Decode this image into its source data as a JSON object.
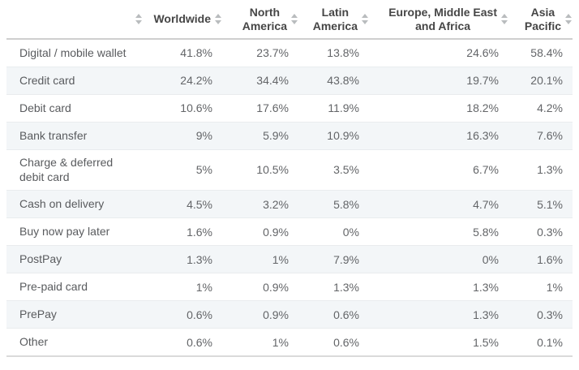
{
  "chart_data": {
    "type": "table",
    "title": "",
    "unit": "%",
    "categories": [
      "Digital / mobile wallet",
      "Credit card",
      "Debit card",
      "Bank transfer",
      "Charge & deferred debit card",
      "Cash on delivery",
      "Buy now pay later",
      "PostPay",
      "Pre-paid card",
      "PrePay",
      "Other"
    ],
    "series": [
      {
        "name": "Worldwide",
        "values": [
          41.8,
          24.2,
          10.6,
          9,
          5,
          4.5,
          1.6,
          1.3,
          1,
          0.6,
          0.6
        ]
      },
      {
        "name": "North America",
        "values": [
          23.7,
          34.4,
          17.6,
          5.9,
          10.5,
          3.2,
          0.9,
          1,
          0.9,
          0.9,
          1
        ]
      },
      {
        "name": "Latin America",
        "values": [
          13.8,
          43.8,
          11.9,
          10.9,
          3.5,
          5.8,
          0,
          7.9,
          1.3,
          0.6,
          0.6
        ]
      },
      {
        "name": "Europe, Middle East and Africa",
        "values": [
          24.6,
          19.7,
          18.2,
          16.3,
          6.7,
          4.7,
          5.8,
          0,
          1.3,
          1.3,
          1.5
        ]
      },
      {
        "name": "Asia Pacific",
        "values": [
          58.4,
          20.1,
          4.2,
          7.6,
          1.3,
          5.1,
          0.3,
          1.6,
          1,
          0.3,
          0.1
        ]
      }
    ]
  },
  "table": {
    "header": {
      "label_column": "",
      "columns": [
        {
          "label": "Worldwide"
        },
        {
          "label": "North\nAmerica"
        },
        {
          "label": "Latin\nAmerica"
        },
        {
          "label": "Europe, Middle East\nand Africa"
        },
        {
          "label": "Asia\nPacific"
        }
      ]
    },
    "rows": [
      {
        "label": "Digital / mobile wallet",
        "values": [
          "41.8%",
          "23.7%",
          "13.8%",
          "24.6%",
          "58.4%"
        ]
      },
      {
        "label": "Credit card",
        "values": [
          "24.2%",
          "34.4%",
          "43.8%",
          "19.7%",
          "20.1%"
        ]
      },
      {
        "label": "Debit card",
        "values": [
          "10.6%",
          "17.6%",
          "11.9%",
          "18.2%",
          "4.2%"
        ]
      },
      {
        "label": "Bank transfer",
        "values": [
          "9%",
          "5.9%",
          "10.9%",
          "16.3%",
          "7.6%"
        ]
      },
      {
        "label": "Charge & deferred debit card",
        "values": [
          "5%",
          "10.5%",
          "3.5%",
          "6.7%",
          "1.3%"
        ]
      },
      {
        "label": "Cash on delivery",
        "values": [
          "4.5%",
          "3.2%",
          "5.8%",
          "4.7%",
          "5.1%"
        ]
      },
      {
        "label": "Buy now pay later",
        "values": [
          "1.6%",
          "0.9%",
          "0%",
          "5.8%",
          "0.3%"
        ]
      },
      {
        "label": "PostPay",
        "values": [
          "1.3%",
          "1%",
          "7.9%",
          "0%",
          "1.6%"
        ]
      },
      {
        "label": "Pre-paid card",
        "values": [
          "1%",
          "0.9%",
          "1.3%",
          "1.3%",
          "1%"
        ]
      },
      {
        "label": "PrePay",
        "values": [
          "0.6%",
          "0.9%",
          "0.6%",
          "1.3%",
          "0.3%"
        ]
      },
      {
        "label": "Other",
        "values": [
          "0.6%",
          "1%",
          "0.6%",
          "1.5%",
          "0.1%"
        ]
      }
    ]
  },
  "colors": {
    "stripe_row_bg": "#f3f6f8",
    "header_text": "#464646",
    "body_text": "#636568",
    "header_border": "#cfcfcf",
    "bottom_border": "#dadada",
    "sort_icon": "#b9bcbe"
  },
  "icons": {
    "sort": "sort-icon"
  }
}
